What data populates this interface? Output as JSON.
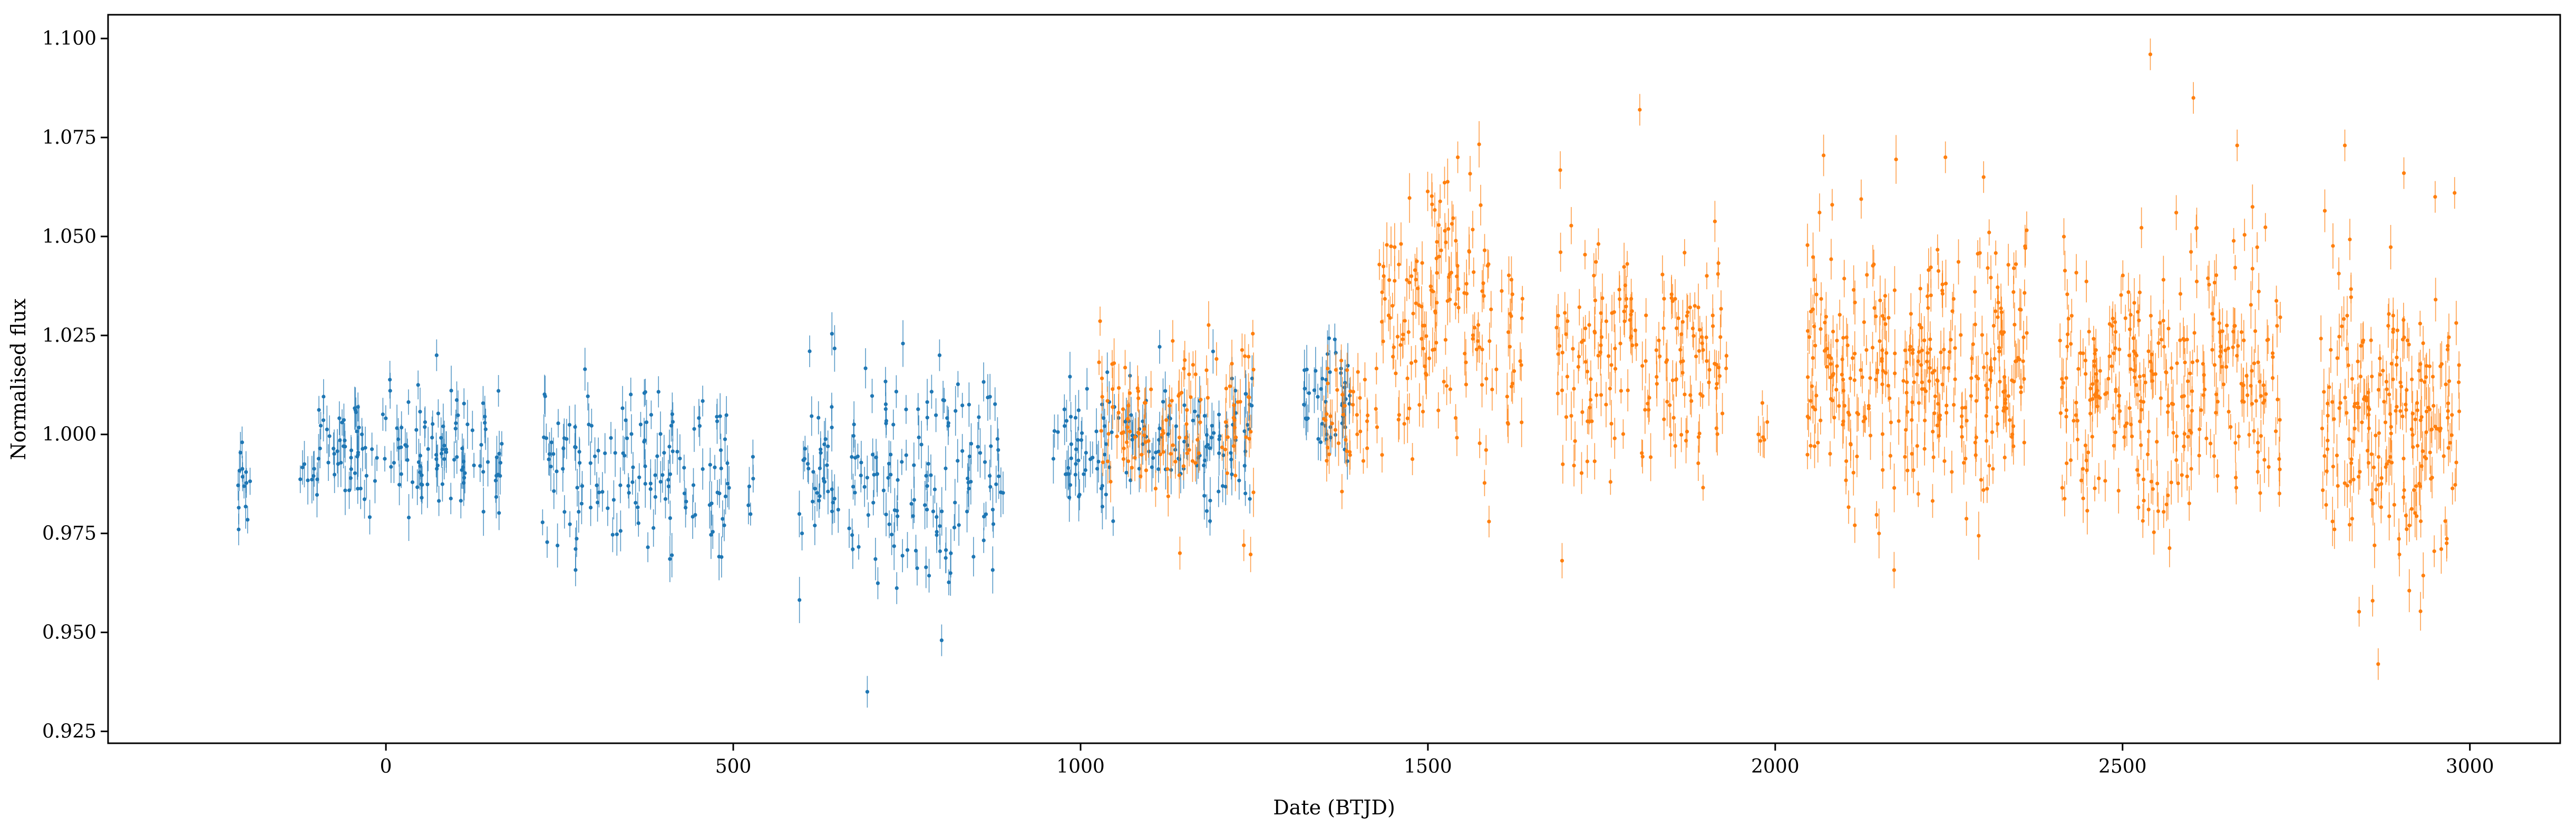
{
  "chart_data": {
    "type": "scatter",
    "title": "",
    "xlabel": "Date (BTJD)",
    "ylabel": "Normalised flux",
    "xlim": [
      -400,
      3130
    ],
    "ylim": [
      0.922,
      1.106
    ],
    "x_ticks": [
      0,
      500,
      1000,
      1500,
      2000,
      2500,
      3000
    ],
    "x_tick_labels": [
      "0",
      "500",
      "1000",
      "1500",
      "2000",
      "2500",
      "3000"
    ],
    "y_ticks": [
      0.925,
      0.95,
      0.975,
      1.0,
      1.025,
      1.05,
      1.075,
      1.1
    ],
    "y_tick_labels": [
      "0.925",
      "0.950",
      "0.975",
      "1.000",
      "1.025",
      "1.050",
      "1.075",
      "1.100"
    ],
    "grid": false,
    "legend": "none",
    "series": [
      {
        "color": "#1f77b4",
        "segments": [
          {
            "x_range": [
              -215,
              -195
            ],
            "n": 12,
            "mean": 0.988,
            "scatter": 0.006,
            "err": 0.004
          },
          {
            "x_range": [
              -125,
              170
            ],
            "n": 150,
            "mean": 0.996,
            "scatter": 0.007,
            "err": 0.0045
          },
          {
            "x_range": [
              225,
              500
            ],
            "n": 140,
            "mean": 0.99,
            "scatter": 0.01,
            "err": 0.0045
          },
          {
            "x_range": [
              520,
              530
            ],
            "n": 5,
            "mean": 0.99,
            "scatter": 0.006,
            "err": 0.004
          },
          {
            "x_range": [
              590,
              890
            ],
            "n": 170,
            "mean": 0.988,
            "scatter": 0.014,
            "err": 0.0045
          },
          {
            "x_range": [
              960,
              1250
            ],
            "n": 150,
            "mean": 0.997,
            "scatter": 0.009,
            "err": 0.0045
          },
          {
            "x_range": [
              1320,
              1390
            ],
            "n": 45,
            "mean": 1.01,
            "scatter": 0.008,
            "err": 0.0045
          }
        ],
        "points": [
          [
            -212,
            0.976
          ],
          [
            693,
            0.935
          ],
          [
            800,
            0.948
          ],
          [
            -207,
            0.998
          ],
          [
            73,
            1.02
          ],
          [
            162,
            1.011
          ],
          [
            610,
            1.021
          ],
          [
            797,
            1.02
          ],
          [
            1366,
            1.024
          ]
        ]
      },
      {
        "color": "#ff7f0e",
        "segments": [
          {
            "x_range": [
              1025,
              1255
            ],
            "n": 120,
            "mean": 1.003,
            "scatter": 0.012,
            "err": 0.0045
          },
          {
            "x_range": [
              1350,
              1430
            ],
            "n": 40,
            "mean": 1.008,
            "scatter": 0.01,
            "err": 0.0045
          },
          {
            "x_range": [
              1430,
              1500
            ],
            "n": 60,
            "mean": 1.028,
            "scatter": 0.014,
            "err": 0.0045
          },
          {
            "x_range": [
              1500,
              1580
            ],
            "n": 70,
            "mean": 1.038,
            "scatter": 0.016,
            "err": 0.0045
          },
          {
            "x_range": [
              1580,
              1640
            ],
            "n": 30,
            "mean": 1.02,
            "scatter": 0.014,
            "err": 0.0045
          },
          {
            "x_range": [
              1685,
              1930
            ],
            "n": 180,
            "mean": 1.018,
            "scatter": 0.015,
            "err": 0.0045
          },
          {
            "x_range": [
              1975,
              1990
            ],
            "n": 6,
            "mean": 1.005,
            "scatter": 0.008,
            "err": 0.004
          },
          {
            "x_range": [
              2045,
              2365
            ],
            "n": 320,
            "mean": 1.016,
            "scatter": 0.016,
            "err": 0.0045
          },
          {
            "x_range": [
              2410,
              2730
            ],
            "n": 300,
            "mean": 1.012,
            "scatter": 0.016,
            "err": 0.0045
          },
          {
            "x_range": [
              2785,
              2985
            ],
            "n": 220,
            "mean": 1.003,
            "scatter": 0.018,
            "err": 0.0045
          }
        ],
        "points": [
          [
            1543,
            1.07
          ],
          [
            1805,
            1.082
          ],
          [
            2245,
            1.07
          ],
          [
            2300,
            1.065
          ],
          [
            2540,
            1.096
          ],
          [
            2602,
            1.085
          ],
          [
            2665,
            1.073
          ],
          [
            2820,
            1.073
          ],
          [
            2868,
            0.942
          ],
          [
            2860,
            0.958
          ],
          [
            2950,
            1.06
          ],
          [
            2978,
            1.061
          ],
          [
            2905,
            1.066
          ],
          [
            2082,
            1.058
          ],
          [
            1588,
            0.978
          ],
          [
            1235,
            0.972
          ]
        ]
      }
    ]
  }
}
